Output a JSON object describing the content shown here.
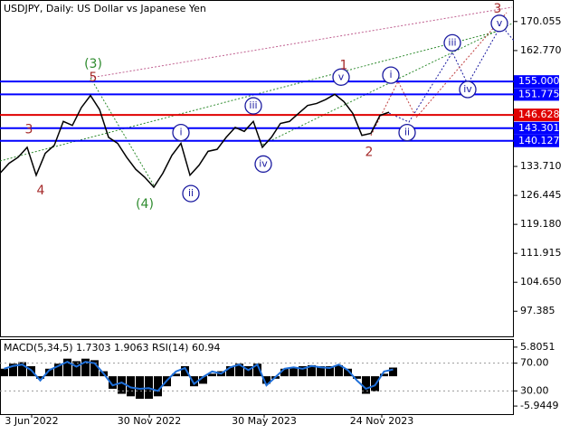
{
  "chart_data": [
    {
      "type": "line",
      "title": "USDJPY, Daily:  US Dollar vs Japanese Yen",
      "color": "#000000",
      "x": [
        0,
        10,
        20,
        30,
        40,
        50,
        60,
        70,
        80,
        90,
        100,
        110,
        120,
        130,
        140,
        150,
        160,
        170,
        180,
        190,
        200,
        210,
        220,
        230,
        240,
        250,
        260,
        270,
        280,
        290,
        300,
        310,
        320,
        330,
        340,
        350,
        360,
        370,
        380,
        390,
        400,
        410,
        420,
        430
      ],
      "values": [
        132.0,
        134.5,
        136.0,
        138.5,
        131.5,
        137.0,
        139.0,
        145.0,
        144.0,
        148.5,
        151.5,
        148.0,
        141.0,
        139.5,
        136.0,
        133.0,
        131.0,
        128.5,
        132.0,
        136.5,
        139.5,
        131.5,
        134.0,
        137.5,
        138.0,
        141.0,
        143.5,
        142.5,
        145.0,
        138.5,
        141.0,
        144.5,
        145.0,
        147.0,
        149.0,
        149.5,
        150.5,
        151.8,
        150.0,
        147.0,
        141.5,
        142.0,
        146.5,
        147.3
      ],
      "xlim": [
        0,
        568
      ],
      "ylim": [
        91.09,
        175.45
      ],
      "yticks": [
        {
          "value": 170.055,
          "label": "170.055"
        },
        {
          "value": 162.77,
          "label": "162.770"
        },
        {
          "value": 133.71,
          "label": "133.710"
        },
        {
          "value": 126.445,
          "label": "126.445"
        },
        {
          "value": 119.18,
          "label": "119.180"
        },
        {
          "value": 111.915,
          "label": "111.915"
        },
        {
          "value": 104.65,
          "label": "104.650"
        },
        {
          "value": 97.385,
          "label": "97.385"
        }
      ],
      "levels": [
        {
          "value": 155.0,
          "label": "155.000",
          "color": "#0000ff"
        },
        {
          "value": 151.775,
          "label": "151.775",
          "color": "#0000ff"
        },
        {
          "value": 146.628,
          "label": "146.628",
          "color": "#e00000"
        },
        {
          "value": 143.301,
          "label": "143.301",
          "color": "#0000ff"
        },
        {
          "value": 140.127,
          "label": "140.127",
          "color": "#0000ff"
        }
      ],
      "annotations": [
        {
          "text": "(3)",
          "x": 103,
          "y": 159.3,
          "color": "#2e8b2e",
          "circled": false
        },
        {
          "text": "5",
          "x": 103,
          "y": 155.9,
          "color": "#a52a2a",
          "circled": false
        },
        {
          "text": "3",
          "x": 32,
          "y": 142.9,
          "color": "#a52a2a",
          "circled": false
        },
        {
          "text": "4",
          "x": 45,
          "y": 127.6,
          "color": "#a52a2a",
          "circled": false
        },
        {
          "text": "(4)",
          "x": 160,
          "y": 124.2,
          "color": "#2e8b2e",
          "circled": false
        },
        {
          "text": "i",
          "x": 200,
          "y": 142.2,
          "color": "#1a1aa0",
          "circled": true
        },
        {
          "text": "ii",
          "x": 211,
          "y": 126.9,
          "color": "#1a1aa0",
          "circled": true
        },
        {
          "text": "iii",
          "x": 280,
          "y": 148.9,
          "color": "#1a1aa0",
          "circled": true
        },
        {
          "text": "iv",
          "x": 291,
          "y": 134.3,
          "color": "#1a1aa0",
          "circled": true
        },
        {
          "text": "v",
          "x": 377,
          "y": 156.1,
          "color": "#1a1aa0",
          "circled": true
        },
        {
          "text": "1",
          "x": 380,
          "y": 159.0,
          "color": "#a52a2a",
          "circled": false
        },
        {
          "text": "2",
          "x": 408,
          "y": 137.2,
          "color": "#a52a2a",
          "circled": false
        },
        {
          "text": "i",
          "x": 432,
          "y": 156.6,
          "color": "#1a1aa0",
          "circled": true
        },
        {
          "text": "ii",
          "x": 450,
          "y": 142.2,
          "color": "#1a1aa0",
          "circled": true
        },
        {
          "text": "iii",
          "x": 500,
          "y": 164.7,
          "color": "#1a1aa0",
          "circled": true
        },
        {
          "text": "iv",
          "x": 517,
          "y": 153.0,
          "color": "#1a1aa0",
          "circled": true
        },
        {
          "text": "v",
          "x": 552,
          "y": 169.6,
          "color": "#1a1aa0",
          "circled": true
        },
        {
          "text": "3",
          "x": 550,
          "y": 173.2,
          "color": "#a52a2a",
          "circled": false
        }
      ]
    },
    {
      "type": "bar",
      "title": "MACD(5,34,5) 1.7303 1.9063 RSI(14) 60.94",
      "color": "#000000",
      "x": [
        0,
        10,
        20,
        30,
        40,
        50,
        60,
        70,
        80,
        90,
        100,
        110,
        120,
        130,
        140,
        150,
        160,
        170,
        180,
        190,
        200,
        210,
        220,
        230,
        240,
        250,
        260,
        270,
        280,
        290,
        300,
        310,
        320,
        330,
        340,
        350,
        360,
        370,
        380,
        390,
        400,
        410,
        420,
        430
      ],
      "values": [
        1.5,
        2.5,
        2.8,
        2.0,
        -0.5,
        1.5,
        2.5,
        3.5,
        3.0,
        3.5,
        3.2,
        1.0,
        -2.5,
        -3.5,
        -4.0,
        -4.5,
        -4.5,
        -4.0,
        -2.0,
        0.5,
        2.0,
        -2.0,
        -1.5,
        0.5,
        1.0,
        2.0,
        2.5,
        2.0,
        2.5,
        -1.5,
        -0.5,
        1.5,
        1.8,
        2.0,
        2.2,
        2.0,
        2.0,
        2.2,
        1.5,
        -0.5,
        -3.5,
        -3.0,
        0.5,
        1.7303
      ],
      "series": [
        {
          "name": "RSI(14)",
          "color": "#1e6fd9",
          "axis": "y2",
          "values": [
            62,
            66,
            68,
            60,
            45,
            60,
            66,
            72,
            65,
            72,
            70,
            55,
            38,
            42,
            35,
            33,
            34,
            30,
            45,
            58,
            63,
            40,
            50,
            58,
            55,
            64,
            68,
            60,
            68,
            38,
            50,
            62,
            64,
            62,
            66,
            64,
            63,
            68,
            60,
            45,
            33,
            38,
            58,
            60.94
          ]
        }
      ],
      "xlim": [
        0,
        568
      ],
      "ylim": [
        -7.55,
        7.23
      ],
      "y2lim": [
        -3.5,
        103.5
      ],
      "yticks": [
        {
          "value": 5.8051,
          "label": "5.8051"
        },
        {
          "value": -5.9449,
          "label": "-5.9449"
        }
      ],
      "y2ticks": [
        {
          "value": 70,
          "label": "70.00"
        },
        {
          "value": 30,
          "label": "30.00"
        }
      ],
      "grid": true,
      "xticks": [
        {
          "value": 35,
          "label": "3 Jun 2022"
        },
        {
          "value": 165,
          "label": "30 Nov 2022"
        },
        {
          "value": 292,
          "label": "30 May 2023"
        },
        {
          "value": 422,
          "label": "24 Nov 2023"
        }
      ]
    }
  ]
}
